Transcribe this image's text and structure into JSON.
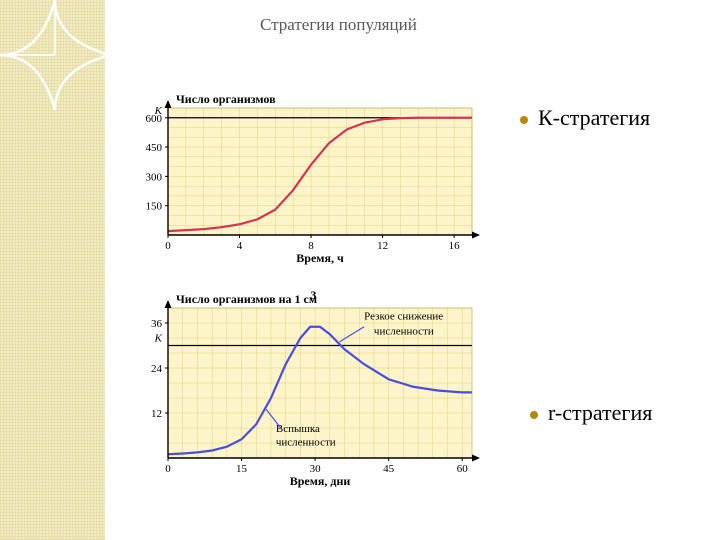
{
  "title": "Стратегии популяций",
  "labels": {
    "k": "К-стратегия",
    "r": "r-стратегия"
  },
  "bullet_color": "#b8860b",
  "chart1": {
    "type": "line",
    "title": "Число организмов",
    "xlabel": "Время, ч",
    "k_label": "K",
    "xlim": [
      0,
      17
    ],
    "ylim": [
      0,
      650
    ],
    "xticks": [
      0,
      4,
      8,
      12,
      16
    ],
    "yticks": [
      150,
      300,
      450,
      600
    ],
    "k_value": 600,
    "plot_bg": "#fdf5c9",
    "grid_color": "#b8a830",
    "line_color": "#d4344f",
    "line_width": 2.2,
    "data": [
      [
        0,
        20
      ],
      [
        1,
        25
      ],
      [
        2,
        30
      ],
      [
        3,
        40
      ],
      [
        4,
        55
      ],
      [
        5,
        80
      ],
      [
        6,
        130
      ],
      [
        7,
        230
      ],
      [
        8,
        360
      ],
      [
        9,
        470
      ],
      [
        10,
        540
      ],
      [
        11,
        575
      ],
      [
        12,
        592
      ],
      [
        13,
        598
      ],
      [
        14,
        600
      ],
      [
        15,
        600
      ],
      [
        16,
        600
      ],
      [
        17,
        600
      ]
    ]
  },
  "chart2": {
    "type": "line",
    "title": "Число организмов на 1 см",
    "title_sup": "3",
    "xlabel": "Время, дни",
    "k_label": "K",
    "annot1": "Резкое снижение",
    "annot1b": "численности",
    "annot2": "Вспышка",
    "annot2b": "численности",
    "xlim": [
      0,
      62
    ],
    "ylim": [
      0,
      40
    ],
    "xticks": [
      0,
      15,
      30,
      45,
      60
    ],
    "yticks": [
      12,
      24,
      36
    ],
    "k_value": 30,
    "plot_bg": "#fdf5c9",
    "grid_color": "#b8a830",
    "line_color": "#4a4de0",
    "line_width": 2.2,
    "annot_line_color": "#4a4de0",
    "data": [
      [
        0,
        1
      ],
      [
        3,
        1.2
      ],
      [
        6,
        1.5
      ],
      [
        9,
        2
      ],
      [
        12,
        3
      ],
      [
        15,
        5
      ],
      [
        18,
        9
      ],
      [
        21,
        16
      ],
      [
        24,
        25
      ],
      [
        27,
        32
      ],
      [
        29,
        35
      ],
      [
        31,
        35
      ],
      [
        33,
        33
      ],
      [
        36,
        29
      ],
      [
        40,
        25
      ],
      [
        45,
        21
      ],
      [
        50,
        19
      ],
      [
        55,
        18
      ],
      [
        60,
        17.5
      ],
      [
        62,
        17.5
      ]
    ]
  }
}
